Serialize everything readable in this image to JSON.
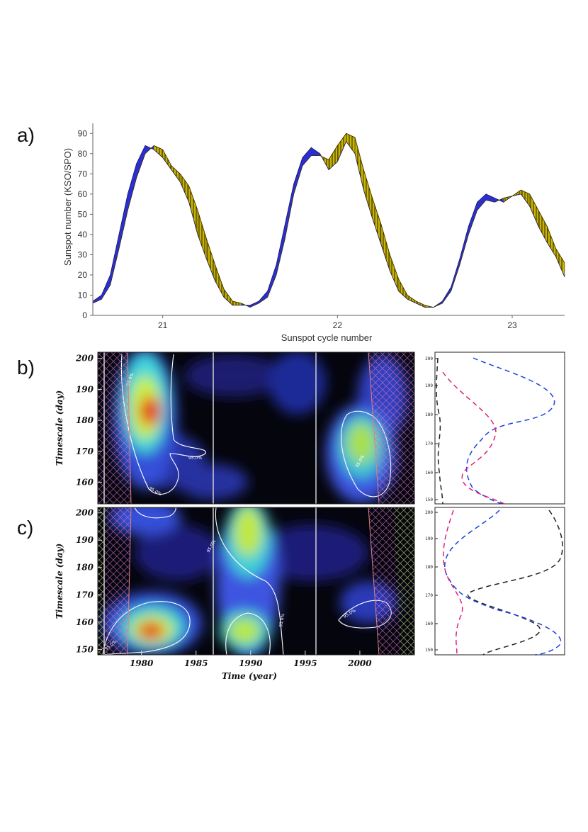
{
  "panels": {
    "a": "a)",
    "b": "b)",
    "c": "c)"
  },
  "chart_data": [
    {
      "type": "area",
      "panel": "a)",
      "xlabel": "Sunspot cycle number",
      "ylabel": "Sunspot number (KSO/SPO)",
      "ylim": [
        0,
        95
      ],
      "xlim": [
        20.6,
        23.3
      ],
      "y_ticks": [
        0,
        10,
        20,
        30,
        40,
        50,
        60,
        70,
        80,
        90
      ],
      "x_ticks": [
        21,
        22,
        23
      ],
      "grid": false,
      "colors": {
        "kso_dominant": "#2b2fd0",
        "spo_dominant": "#c9b400"
      },
      "series": [
        {
          "x": [
            20.6,
            20.65,
            20.7,
            20.75,
            20.8,
            20.85,
            20.9,
            20.95,
            21.0,
            21.05,
            21.1,
            21.15,
            21.2,
            21.25,
            21.3,
            21.35,
            21.4,
            21.45,
            21.5,
            21.55,
            21.6,
            21.65,
            21.7,
            21.75,
            21.8,
            21.85,
            21.9,
            21.95,
            22.0,
            22.05,
            22.1,
            22.15,
            22.2,
            22.25,
            22.3,
            22.35,
            22.4,
            22.45,
            22.5,
            22.55,
            22.6,
            22.65,
            22.7,
            22.75,
            22.8,
            22.85,
            22.9,
            22.95,
            23.0,
            23.05,
            23.1,
            23.15,
            23.2,
            23.25,
            23.3
          ],
          "values": [
            7,
            10,
            20,
            40,
            60,
            75,
            84,
            82,
            78,
            72,
            66,
            56,
            40,
            28,
            17,
            9,
            5,
            5,
            5,
            7,
            12,
            25,
            45,
            65,
            78,
            83,
            80,
            72,
            76,
            86,
            80,
            62,
            48,
            35,
            22,
            12,
            8,
            6,
            4,
            4,
            7,
            14,
            28,
            44,
            56,
            60,
            58,
            56,
            59,
            60,
            54,
            44,
            36,
            29,
            19
          ]
        },
        {
          "x": [
            20.6,
            20.65,
            20.7,
            20.75,
            20.8,
            20.85,
            20.9,
            20.95,
            21.0,
            21.05,
            21.1,
            21.15,
            21.2,
            21.25,
            21.3,
            21.35,
            21.4,
            21.45,
            21.5,
            21.55,
            21.6,
            21.65,
            21.7,
            21.75,
            21.8,
            21.85,
            21.9,
            21.95,
            22.0,
            22.05,
            22.1,
            22.15,
            22.2,
            22.25,
            22.3,
            22.35,
            22.4,
            22.45,
            22.5,
            22.55,
            22.6,
            22.65,
            22.7,
            22.75,
            22.8,
            22.85,
            22.9,
            22.95,
            23.0,
            23.05,
            23.1,
            23.15,
            23.2,
            23.25,
            23.3
          ],
          "values": [
            6,
            8,
            15,
            33,
            52,
            68,
            80,
            84,
            82,
            74,
            70,
            64,
            52,
            38,
            25,
            13,
            7,
            6,
            4,
            6,
            9,
            20,
            38,
            60,
            74,
            79,
            79,
            77,
            84,
            90,
            88,
            72,
            58,
            45,
            30,
            18,
            10,
            7,
            5,
            4,
            6,
            12,
            25,
            40,
            52,
            57,
            56,
            58,
            59,
            62,
            60,
            52,
            44,
            33,
            26
          ]
        }
      ]
    },
    {
      "type": "heatmap",
      "panel": "b)",
      "ylabel": "Timescale (day)",
      "xlim": [
        1976,
        2005
      ],
      "ylim": [
        153,
        202
      ],
      "y_ticks": [
        160,
        170,
        180,
        190,
        200
      ],
      "x_ticks": [
        1980,
        1985,
        1990,
        1995,
        2000
      ],
      "contour_label": "95.0%",
      "side_y_ticks": [
        "150",
        "160",
        "170",
        "180",
        "190",
        "200"
      ]
    },
    {
      "type": "heatmap",
      "panel": "c)",
      "xlabel": "Time (year)",
      "ylabel": "Timescale (day)",
      "xlim": [
        1976,
        2005
      ],
      "ylim": [
        148,
        202
      ],
      "y_ticks": [
        150,
        160,
        170,
        180,
        190,
        200
      ],
      "x_ticks": [
        1980,
        1985,
        1990,
        1995,
        2000
      ],
      "contour_label": "95.0%",
      "side_y_ticks": [
        "150",
        "160",
        "170",
        "180",
        "190",
        "200"
      ]
    }
  ]
}
